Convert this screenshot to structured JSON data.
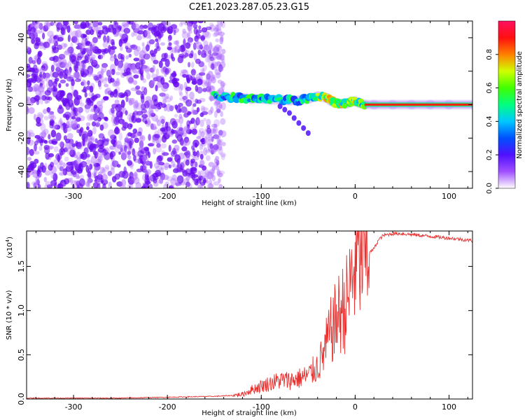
{
  "title": "C2E1.2023.287.05.23.G15",
  "colors": {
    "snr_line": "#e8312f",
    "trace_main": "#e8241c",
    "background": "#ffffff"
  },
  "chart_data": [
    {
      "type": "heatmap",
      "name": "spectrogram",
      "xlabel": "Height of straight line (km)",
      "ylabel": "Frequency (Hz)",
      "xlim": [
        -350,
        125
      ],
      "ylim": [
        -50,
        50
      ],
      "x_ticks": [
        -300,
        -200,
        -100,
        0,
        100
      ],
      "y_ticks": [
        -40,
        -20,
        0,
        20,
        40
      ],
      "noise_region_x": [
        -350,
        -140
      ],
      "trace": {
        "x": [
          -150,
          -140,
          -130,
          -120,
          -110,
          -100,
          -90,
          -80,
          -70,
          -60,
          -50,
          -40,
          -30,
          -25,
          -20,
          -15,
          -10,
          -5,
          0,
          5,
          10,
          20,
          40,
          60,
          80,
          100,
          125
        ],
        "y": [
          5,
          5,
          4.5,
          4,
          3.5,
          3.5,
          3,
          3,
          2.5,
          2.5,
          3.5,
          5,
          4,
          2,
          1,
          0.5,
          0.5,
          1.5,
          2,
          1,
          0,
          0,
          0,
          0,
          0,
          0,
          0
        ]
      },
      "branch": {
        "x": [
          -80,
          -75,
          -70,
          -65,
          -60,
          -55,
          -50
        ],
        "y": [
          -1,
          -3,
          -5,
          -8,
          -11,
          -14,
          -17
        ]
      },
      "colorbar": {
        "label": "Normalized spectral amplitude",
        "range": [
          0,
          1
        ],
        "ticks": [
          0.0,
          0.2,
          0.4,
          0.6,
          0.8
        ]
      }
    },
    {
      "type": "line",
      "name": "snr",
      "xlabel": "Height of straight line (km)",
      "ylabel": "SNR (10 * v/v)",
      "ylabel_multiplier": "(x10",
      "ylabel_multiplier_exp": "4",
      "ylabel_multiplier_close": ")",
      "xlim": [
        -350,
        125
      ],
      "ylim": [
        0,
        1.9
      ],
      "x_ticks": [
        -300,
        -200,
        -100,
        0,
        100
      ],
      "y_ticks": [
        0.0,
        0.5,
        1.0,
        1.5
      ],
      "x": [
        -350,
        -300,
        -250,
        -200,
        -150,
        -130,
        -120,
        -110,
        -100,
        -90,
        -80,
        -70,
        -60,
        -50,
        -45,
        -40,
        -35,
        -30,
        -25,
        -20,
        -15,
        -10,
        -5,
        0,
        5,
        10,
        15,
        20,
        25,
        30,
        35,
        40,
        50,
        60,
        70,
        80,
        90,
        100,
        110,
        125
      ],
      "y": [
        0.01,
        0.01,
        0.01,
        0.02,
        0.03,
        0.04,
        0.05,
        0.1,
        0.14,
        0.17,
        0.2,
        0.2,
        0.22,
        0.25,
        0.3,
        0.35,
        0.45,
        0.6,
        0.75,
        0.85,
        0.95,
        1.0,
        1.2,
        1.45,
        1.55,
        1.6,
        1.65,
        1.7,
        1.8,
        1.85,
        1.86,
        1.87,
        1.87,
        1.86,
        1.85,
        1.84,
        1.83,
        1.82,
        1.81,
        1.79
      ]
    }
  ]
}
